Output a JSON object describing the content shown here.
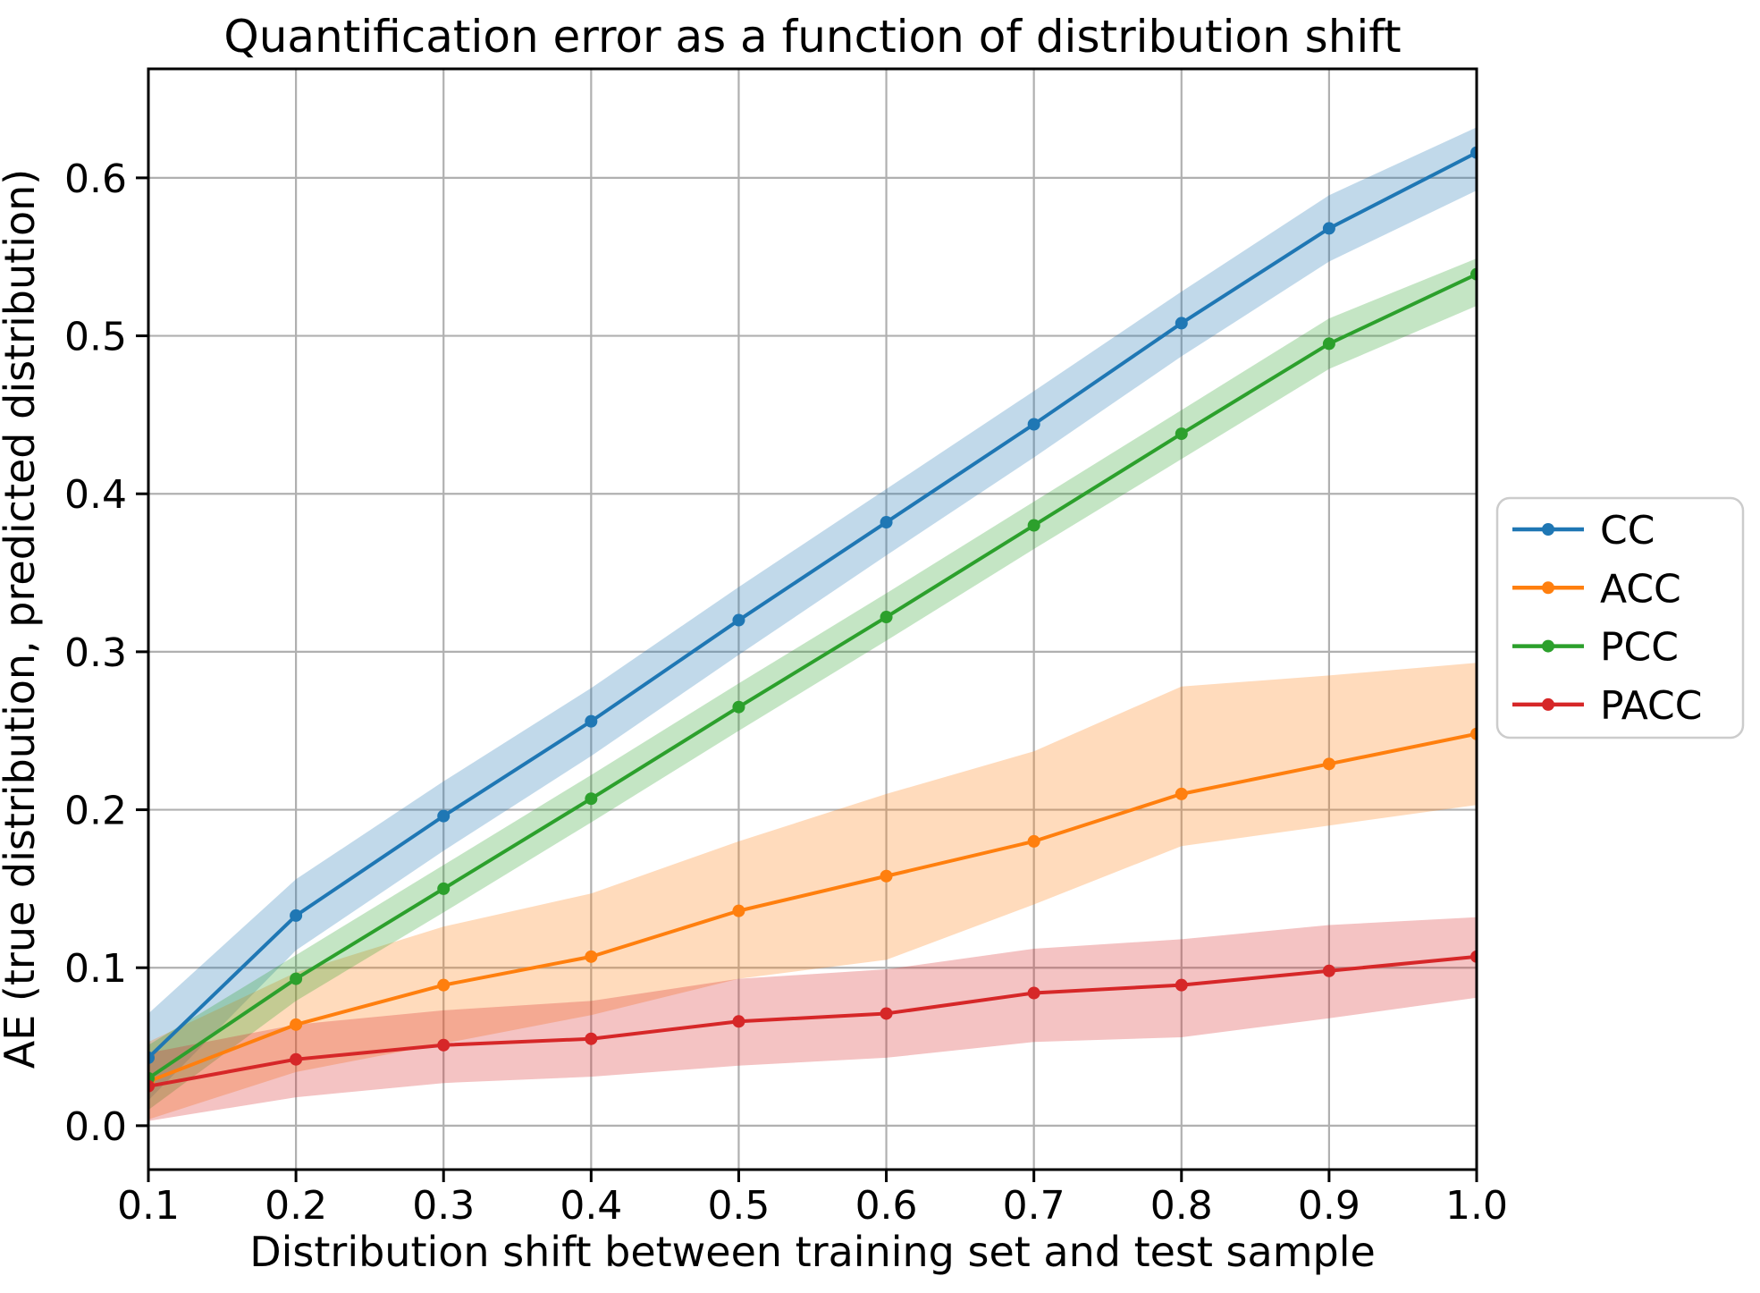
{
  "chart_data": {
    "type": "line",
    "title": "Quantification error as a function of distribution shift",
    "xlabel": "Distribution shift between training set and test sample",
    "ylabel": "AE (true distribution, predicted distribution)",
    "x": [
      0.1,
      0.2,
      0.3,
      0.4,
      0.5,
      0.6,
      0.7,
      0.8,
      0.9,
      1.0
    ],
    "xlim": [
      0.1,
      1.0
    ],
    "ylim": [
      -0.0278,
      0.669
    ],
    "x_tick_labels": [
      "0.1",
      "0.2",
      "0.3",
      "0.4",
      "0.5",
      "0.6",
      "0.7",
      "0.8",
      "0.9",
      "1.0"
    ],
    "y_ticks": [
      0.0,
      0.1,
      0.2,
      0.3,
      0.4,
      0.5,
      0.6
    ],
    "y_tick_labels": [
      "0.0",
      "0.1",
      "0.2",
      "0.3",
      "0.4",
      "0.5",
      "0.6"
    ],
    "grid": true,
    "grid_color": "#b0b0b0",
    "band_alpha": 0.28,
    "legend": {
      "position": "right-outside",
      "entries": [
        "CC",
        "ACC",
        "PCC",
        "PACC"
      ]
    },
    "series": [
      {
        "name": "CC",
        "color": "#1f77b4",
        "values": [
          0.043,
          0.133,
          0.196,
          0.256,
          0.32,
          0.382,
          0.444,
          0.508,
          0.568,
          0.616
        ],
        "band_lo": [
          0.016,
          0.111,
          0.174,
          0.234,
          0.298,
          0.361,
          0.423,
          0.487,
          0.547,
          0.592
        ],
        "band_hi": [
          0.071,
          0.156,
          0.218,
          0.277,
          0.341,
          0.403,
          0.465,
          0.528,
          0.589,
          0.632
        ]
      },
      {
        "name": "ACC",
        "color": "#ff7f0e",
        "values": [
          0.028,
          0.064,
          0.089,
          0.107,
          0.136,
          0.158,
          0.18,
          0.21,
          0.229,
          0.248
        ],
        "band_lo": [
          0.004,
          0.034,
          0.052,
          0.07,
          0.093,
          0.105,
          0.14,
          0.177,
          0.19,
          0.203
        ],
        "band_hi": [
          0.053,
          0.097,
          0.126,
          0.147,
          0.18,
          0.21,
          0.237,
          0.278,
          0.285,
          0.293
        ]
      },
      {
        "name": "PCC",
        "color": "#2ca02c",
        "values": [
          0.03,
          0.093,
          0.15,
          0.207,
          0.265,
          0.322,
          0.38,
          0.438,
          0.495,
          0.539
        ],
        "band_lo": [
          0.01,
          0.079,
          0.135,
          0.192,
          0.25,
          0.307,
          0.365,
          0.422,
          0.479,
          0.519
        ],
        "band_hi": [
          0.051,
          0.108,
          0.165,
          0.222,
          0.28,
          0.337,
          0.395,
          0.453,
          0.511,
          0.549
        ]
      },
      {
        "name": "PACC",
        "color": "#d62728",
        "values": [
          0.025,
          0.042,
          0.051,
          0.055,
          0.066,
          0.071,
          0.084,
          0.089,
          0.098,
          0.107
        ],
        "band_lo": [
          0.003,
          0.018,
          0.027,
          0.031,
          0.038,
          0.043,
          0.053,
          0.056,
          0.068,
          0.081
        ],
        "band_hi": [
          0.046,
          0.064,
          0.073,
          0.079,
          0.093,
          0.099,
          0.112,
          0.118,
          0.127,
          0.132
        ]
      }
    ]
  }
}
